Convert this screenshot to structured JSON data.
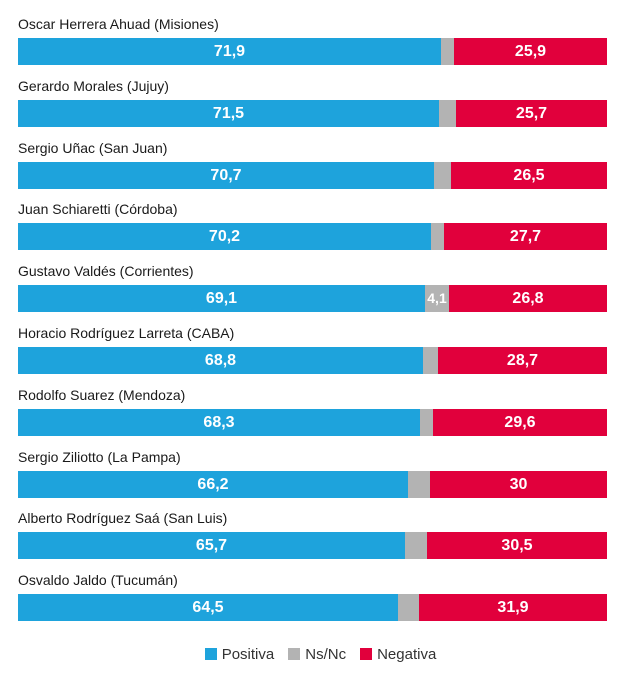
{
  "chart_data": {
    "type": "bar",
    "orientation": "horizontal",
    "stacked": true,
    "categories": [
      "Oscar Herrera Ahuad (Misiones)",
      "Gerardo Morales (Jujuy)",
      "Sergio Uñac (San Juan)",
      "Juan Schiaretti (Córdoba)",
      "Gustavo Valdés (Corrientes)",
      "Horacio Rodríguez Larreta (CABA)",
      "Rodolfo Suarez (Mendoza)",
      "Sergio Ziliotto (La Pampa)",
      "Alberto Rodríguez Saá (San Luis)",
      "Osvaldo Jaldo (Tucumán)"
    ],
    "series": [
      {
        "name": "Positiva",
        "color": "#1ea3dc",
        "values": [
          71.9,
          71.5,
          70.7,
          70.2,
          69.1,
          68.8,
          68.3,
          66.2,
          65.7,
          64.5
        ],
        "labels": [
          "71,9",
          "71,5",
          "70,7",
          "70,2",
          "69,1",
          "68,8",
          "68,3",
          "66,2",
          "65,7",
          "64,5"
        ]
      },
      {
        "name": "Ns/Nc",
        "color": "#b3b3b3",
        "values": [
          2.2,
          2.8,
          2.8,
          2.1,
          4.1,
          2.5,
          2.1,
          3.8,
          3.8,
          3.6
        ],
        "labels": [
          "",
          "",
          "",
          "",
          "4,1",
          "",
          "",
          "",
          "",
          ""
        ]
      },
      {
        "name": "Negativa",
        "color": "#e1003c",
        "values": [
          25.9,
          25.7,
          26.5,
          27.7,
          26.8,
          28.7,
          29.6,
          30,
          30.5,
          31.9
        ],
        "labels": [
          "25,9",
          "25,7",
          "26,5",
          "27,7",
          "26,8",
          "28,7",
          "29,6",
          "30",
          "30,5",
          "31,9"
        ]
      }
    ],
    "xlim": [
      0,
      100
    ],
    "legend": "bottom-center"
  }
}
